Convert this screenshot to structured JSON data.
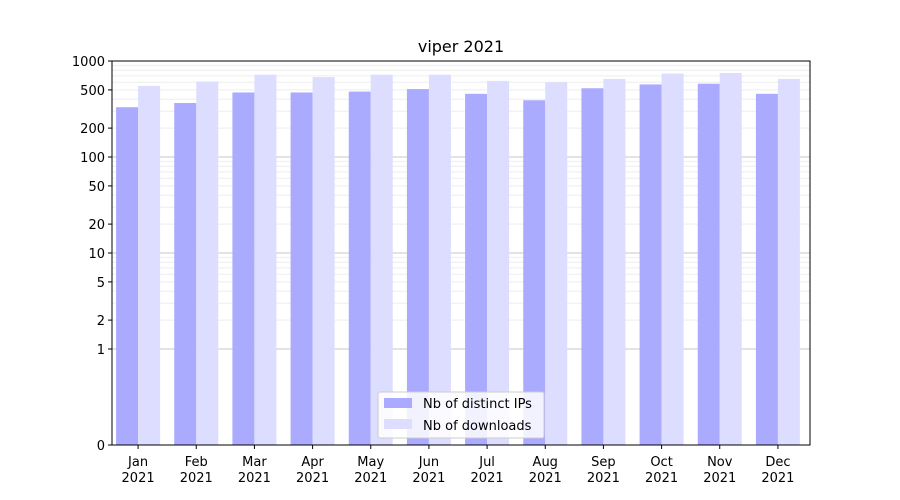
{
  "chart_data": {
    "type": "bar",
    "title": "viper 2021",
    "xlabel": "",
    "ylabel": "",
    "yscale": "symlog",
    "ylim": [
      0,
      1000
    ],
    "yticks": [
      {
        "value": 0,
        "label": "0"
      },
      {
        "value": 1,
        "label": "1"
      },
      {
        "value": 2,
        "label": "2"
      },
      {
        "value": 5,
        "label": "5"
      },
      {
        "value": 10,
        "label": "10"
      },
      {
        "value": 20,
        "label": "20"
      },
      {
        "value": 50,
        "label": "50"
      },
      {
        "value": 100,
        "label": "100"
      },
      {
        "value": 200,
        "label": "200"
      },
      {
        "value": 500,
        "label": "500"
      },
      {
        "value": 1000,
        "label": "1000"
      }
    ],
    "categories": [
      {
        "month": "Jan",
        "year": "2021"
      },
      {
        "month": "Feb",
        "year": "2021"
      },
      {
        "month": "Mar",
        "year": "2021"
      },
      {
        "month": "Apr",
        "year": "2021"
      },
      {
        "month": "May",
        "year": "2021"
      },
      {
        "month": "Jun",
        "year": "2021"
      },
      {
        "month": "Jul",
        "year": "2021"
      },
      {
        "month": "Aug",
        "year": "2021"
      },
      {
        "month": "Sep",
        "year": "2021"
      },
      {
        "month": "Oct",
        "year": "2021"
      },
      {
        "month": "Nov",
        "year": "2021"
      },
      {
        "month": "Dec",
        "year": "2021"
      }
    ],
    "series": [
      {
        "name": "Nb of distinct IPs",
        "color": "#aaaaff",
        "values": [
          330,
          365,
          470,
          470,
          480,
          510,
          455,
          390,
          520,
          570,
          580,
          455
        ]
      },
      {
        "name": "Nb of downloads",
        "color": "#ddddff",
        "values": [
          550,
          610,
          720,
          680,
          720,
          720,
          620,
          600,
          650,
          740,
          750,
          650
        ]
      }
    ],
    "grid": true,
    "legend_position": "bottom-center"
  }
}
